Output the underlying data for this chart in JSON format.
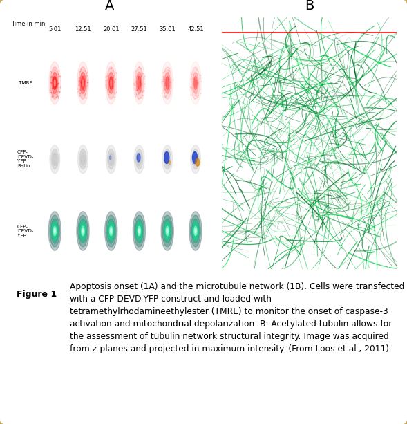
{
  "title_A": "A",
  "title_B": "B",
  "figure_label": "Figure 1",
  "caption": "Apoptosis onset (1A) and the microtubule network (1B). Cells were transfected with a CFP-DEVD-YFP construct and loaded with tetramethylrhodamineethylester (TMRE) to monitor the onset of caspase-3 activation and mitochondrial depolarization. B: Acetylated tubulin allows for the assessment of tubulin network structural integrity. Image was acquired from z-planes and projected in maximum intensity. (From Loos et al., 2011).",
  "border_color": "#c9a84c",
  "background_color": "#ffffff",
  "figure_label_bg": "#d8d8d8",
  "time_label": "Time in min",
  "time_points": [
    "5.01",
    "12.51",
    "20.01",
    "27.51",
    "35.01",
    "42.51"
  ],
  "row_labels": [
    "TMRE",
    "CFP-\nDEVD-\nYFP\nRatio",
    "CFP-\nDEVD-\nYFP"
  ],
  "caption_fontsize": 8.8,
  "label_fontsize": 14,
  "figure_label_fontsize": 9
}
